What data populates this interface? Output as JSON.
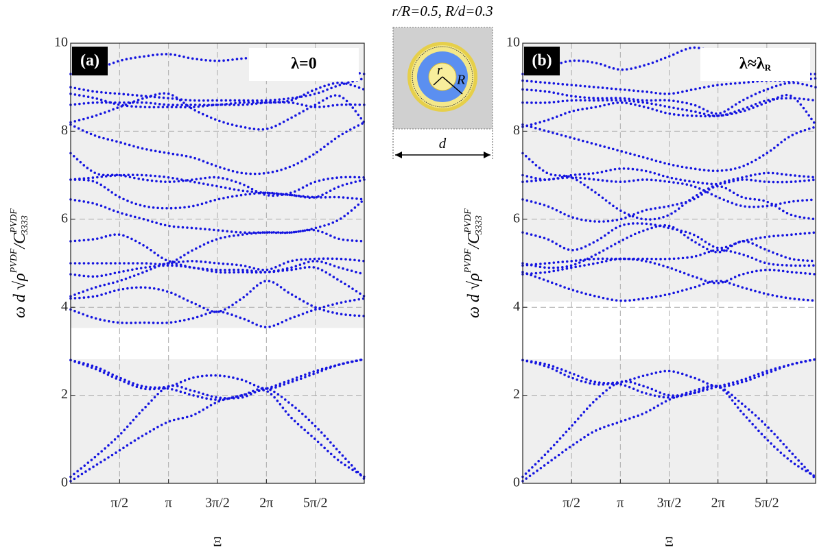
{
  "title": "r/R=0.5, R/d=0.3",
  "inset": {
    "inner_label": "r",
    "outer_label": "R",
    "width_label": "d"
  },
  "chart_data": [
    {
      "type": "line",
      "panel": "(a)",
      "annotation": {
        "text": "λ=0",
        "sub": ""
      },
      "xlabel": "Ξ",
      "ylabel": {
        "pre": "ω d √",
        "rho": "ρ",
        "rho_sup": "PVDF",
        "sep": "/C",
        "c_sup": "PVDF",
        "c_sub": "3333"
      },
      "xlim": [
        0,
        9.4248
      ],
      "ylim": [
        0,
        10
      ],
      "xticks": [
        {
          "value": 1.5708,
          "label": "π/2"
        },
        {
          "value": 3.1416,
          "label": "π"
        },
        {
          "value": 4.7124,
          "label": "3π/2"
        },
        {
          "value": 6.2832,
          "label": "2π"
        },
        {
          "value": 7.854,
          "label": "5π/2"
        }
      ],
      "yticks": [
        0,
        2,
        4,
        6,
        8,
        10
      ],
      "grid": true,
      "gap": [
        2.82,
        3.53
      ],
      "color": "#1414e0",
      "x": [
        0,
        0.785,
        1.571,
        2.356,
        3.142,
        3.927,
        4.712,
        5.498,
        6.283,
        7.069,
        7.854,
        8.639,
        9.425
      ],
      "curves": [
        [
          0.05,
          0.4,
          0.75,
          1.1,
          1.4,
          1.55,
          1.85,
          2.0,
          2.15,
          1.8,
          1.3,
          0.7,
          0.1
        ],
        [
          0.15,
          0.6,
          1.1,
          1.7,
          2.2,
          2.1,
          1.95,
          1.95,
          2.1,
          1.5,
          1.0,
          0.5,
          0.15
        ],
        [
          2.8,
          2.65,
          2.4,
          2.2,
          2.2,
          2.4,
          2.45,
          2.35,
          2.15,
          2.3,
          2.5,
          2.7,
          2.82
        ],
        [
          2.8,
          2.6,
          2.35,
          2.15,
          2.15,
          2.0,
          1.9,
          2.0,
          2.15,
          2.35,
          2.55,
          2.7,
          2.82
        ],
        [
          3.95,
          3.75,
          3.65,
          3.65,
          3.65,
          3.75,
          3.9,
          3.75,
          3.55,
          3.75,
          3.95,
          4.1,
          4.2
        ],
        [
          4.2,
          4.25,
          4.4,
          4.45,
          4.35,
          4.1,
          3.9,
          4.2,
          4.6,
          4.3,
          4.0,
          3.85,
          3.8
        ],
        [
          4.25,
          4.45,
          4.6,
          4.8,
          5.0,
          4.9,
          4.85,
          4.85,
          4.8,
          4.85,
          4.9,
          4.6,
          4.25
        ],
        [
          4.75,
          4.7,
          4.8,
          4.9,
          4.95,
          4.9,
          4.8,
          4.8,
          4.8,
          4.9,
          5.05,
          4.9,
          4.75
        ],
        [
          5.0,
          5.0,
          5.0,
          5.0,
          5.0,
          5.3,
          5.55,
          5.65,
          5.7,
          5.7,
          5.75,
          5.55,
          5.5
        ],
        [
          5.5,
          5.55,
          5.65,
          5.4,
          5.05,
          5.05,
          5.0,
          4.95,
          4.85,
          5.05,
          5.1,
          5.1,
          5.05
        ],
        [
          6.45,
          6.35,
          6.15,
          6.0,
          5.85,
          5.8,
          5.75,
          5.7,
          5.7,
          5.7,
          5.8,
          6.0,
          6.45
        ],
        [
          6.9,
          6.85,
          6.5,
          6.3,
          6.25,
          6.3,
          6.45,
          6.55,
          6.6,
          6.55,
          6.5,
          6.5,
          6.45
        ],
        [
          6.9,
          6.95,
          7.0,
          7.0,
          6.95,
          6.85,
          6.75,
          6.65,
          6.6,
          6.55,
          6.5,
          6.75,
          6.9
        ],
        [
          7.5,
          7.05,
          7.0,
          6.9,
          6.85,
          6.9,
          6.95,
          6.8,
          6.55,
          6.6,
          6.85,
          6.95,
          6.95
        ],
        [
          8.15,
          7.9,
          7.75,
          7.6,
          7.5,
          7.4,
          7.2,
          7.05,
          7.05,
          7.2,
          7.5,
          7.9,
          8.2
        ],
        [
          8.2,
          8.35,
          8.55,
          8.75,
          8.85,
          8.5,
          8.25,
          8.1,
          8.05,
          8.3,
          8.6,
          8.8,
          8.2
        ],
        [
          8.6,
          8.65,
          8.65,
          8.65,
          8.6,
          8.6,
          8.6,
          8.65,
          8.65,
          8.65,
          8.55,
          8.6,
          8.6
        ],
        [
          8.85,
          8.75,
          8.6,
          8.55,
          8.55,
          8.55,
          8.6,
          8.6,
          8.65,
          8.7,
          8.95,
          9.1,
          8.95
        ],
        [
          9.0,
          8.9,
          8.85,
          8.8,
          8.75,
          8.7,
          8.7,
          8.7,
          8.7,
          8.75,
          8.85,
          9.05,
          9.2
        ],
        [
          9.3,
          9.4,
          9.6,
          9.7,
          9.75,
          9.65,
          9.6,
          9.65,
          9.7,
          9.65,
          9.6,
          9.4,
          9.3
        ]
      ]
    },
    {
      "type": "line",
      "panel": "(b)",
      "annotation": {
        "text": "λ≈λ",
        "sub": "R"
      },
      "xlabel": "Ξ",
      "ylabel": {
        "pre": "ω d √",
        "rho": "ρ",
        "rho_sup": "PVDF",
        "sep": "/C",
        "c_sup": "PVDF",
        "c_sub": "3333"
      },
      "xlim": [
        0,
        9.4248
      ],
      "ylim": [
        0,
        10
      ],
      "xticks": [
        {
          "value": 1.5708,
          "label": "π/2"
        },
        {
          "value": 3.1416,
          "label": "π"
        },
        {
          "value": 4.7124,
          "label": "3π/2"
        },
        {
          "value": 6.2832,
          "label": "2π"
        },
        {
          "value": 7.854,
          "label": "5π/2"
        }
      ],
      "yticks": [
        0,
        2,
        4,
        6,
        8,
        10
      ],
      "grid": true,
      "gap": [
        2.82,
        4.13
      ],
      "color": "#1414e0",
      "x": [
        0,
        0.785,
        1.571,
        2.356,
        3.142,
        3.927,
        4.712,
        5.498,
        6.283,
        7.069,
        7.854,
        8.639,
        9.425
      ],
      "curves": [
        [
          0.05,
          0.45,
          0.85,
          1.2,
          1.4,
          1.6,
          1.9,
          2.1,
          2.2,
          1.8,
          1.3,
          0.7,
          0.1
        ],
        [
          0.15,
          0.7,
          1.3,
          1.9,
          2.3,
          2.2,
          2.0,
          2.05,
          2.2,
          1.6,
          1.0,
          0.5,
          0.15
        ],
        [
          2.8,
          2.7,
          2.5,
          2.3,
          2.3,
          2.45,
          2.55,
          2.4,
          2.2,
          2.3,
          2.5,
          2.7,
          2.82
        ],
        [
          2.8,
          2.65,
          2.4,
          2.25,
          2.25,
          2.05,
          1.95,
          2.05,
          2.2,
          2.35,
          2.55,
          2.7,
          2.82
        ],
        [
          4.8,
          4.6,
          4.4,
          4.25,
          4.15,
          4.2,
          4.3,
          4.45,
          4.6,
          4.45,
          4.3,
          4.2,
          4.15
        ],
        [
          4.75,
          4.8,
          4.9,
          5.0,
          5.1,
          5.05,
          4.9,
          4.7,
          4.55,
          4.75,
          4.85,
          4.8,
          4.75
        ],
        [
          4.95,
          5.0,
          5.05,
          5.1,
          5.1,
          5.1,
          5.1,
          5.15,
          5.3,
          5.2,
          5.0,
          4.95,
          4.95
        ],
        [
          5.0,
          4.9,
          4.95,
          5.2,
          5.5,
          5.75,
          5.85,
          5.5,
          5.25,
          5.5,
          5.3,
          5.1,
          5.05
        ],
        [
          5.7,
          5.55,
          5.3,
          5.5,
          5.85,
          5.9,
          5.8,
          5.65,
          5.35,
          5.5,
          5.6,
          5.65,
          5.7
        ],
        [
          6.45,
          6.3,
          6.05,
          5.95,
          6.0,
          6.2,
          6.3,
          6.45,
          6.75,
          6.5,
          6.4,
          6.1,
          6.0
        ],
        [
          6.85,
          6.9,
          6.95,
          6.9,
          6.85,
          6.9,
          6.85,
          6.75,
          6.5,
          6.3,
          6.3,
          6.4,
          6.45
        ],
        [
          7.0,
          6.9,
          7.0,
          7.05,
          7.15,
          7.1,
          6.95,
          6.85,
          6.8,
          6.9,
          6.85,
          6.85,
          6.9
        ],
        [
          7.5,
          7.05,
          6.95,
          6.6,
          6.2,
          6.0,
          6.1,
          6.5,
          6.8,
          6.95,
          7.05,
          7.0,
          6.95
        ],
        [
          8.15,
          8.0,
          7.85,
          7.7,
          7.55,
          7.4,
          7.25,
          7.15,
          7.1,
          7.2,
          7.5,
          7.9,
          8.1
        ],
        [
          8.1,
          8.25,
          8.45,
          8.55,
          8.65,
          8.55,
          8.4,
          8.35,
          8.35,
          8.45,
          8.65,
          8.8,
          8.15
        ],
        [
          8.65,
          8.65,
          8.7,
          8.7,
          8.7,
          8.65,
          8.55,
          8.45,
          8.35,
          8.5,
          8.7,
          8.75,
          8.7
        ],
        [
          8.95,
          8.9,
          8.8,
          8.75,
          8.75,
          8.7,
          8.7,
          8.6,
          8.4,
          8.7,
          8.95,
          9.1,
          9.0
        ],
        [
          9.15,
          9.1,
          9.05,
          9.0,
          8.95,
          8.9,
          8.85,
          8.95,
          9.05,
          9.1,
          9.15,
          9.15,
          9.2
        ],
        [
          9.3,
          9.45,
          9.6,
          9.55,
          9.4,
          9.5,
          9.7,
          9.9,
          9.75,
          9.55,
          9.35,
          9.3,
          9.3
        ]
      ]
    }
  ]
}
